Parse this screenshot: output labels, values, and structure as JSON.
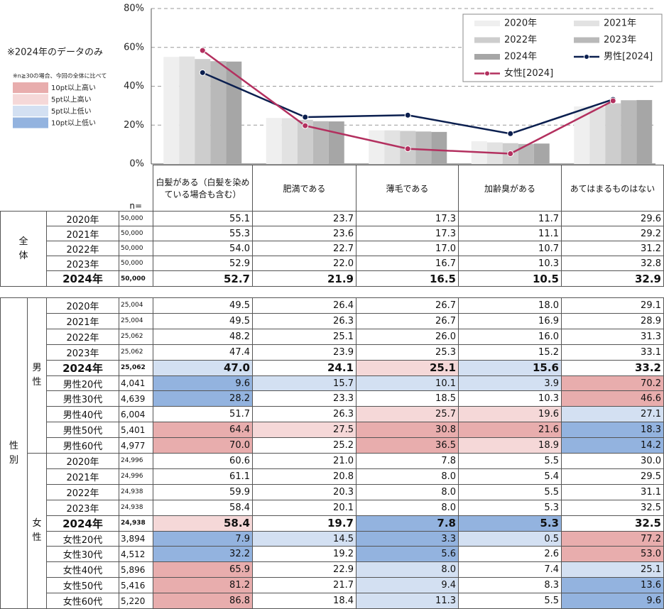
{
  "notes": {
    "data_only": "※2024年のデータのみ",
    "shade_caption": "※n≧30の場合、今回の全体に比べて"
  },
  "shade_legend": [
    {
      "label": "10pt以上高い",
      "color": "#e8adad"
    },
    {
      "label": "5pt以上高い",
      "color": "#f5d8d8"
    },
    {
      "label": "5pt以上低い",
      "color": "#d3e0f2"
    },
    {
      "label": "10pt以上低い",
      "color": "#93b3df"
    }
  ],
  "chart_data": {
    "type": "bar",
    "categories": [
      "白髪がある（白髪を染めている場合も含む）",
      "肥満である",
      "薄毛である",
      "加齢臭がある",
      "あてはまるものはない"
    ],
    "ylim": [
      0,
      80
    ],
    "yticks": [
      {
        "value": 0,
        "label": "0%"
      },
      {
        "value": 20,
        "label": "20%"
      },
      {
        "value": 40,
        "label": "40%"
      },
      {
        "value": 60,
        "label": "60%"
      },
      {
        "value": 80,
        "label": "80%"
      }
    ],
    "grid": true,
    "series": [
      {
        "name": "2020年",
        "color": "#efefef",
        "values": [
          55.1,
          23.7,
          17.3,
          11.7,
          29.6
        ]
      },
      {
        "name": "2021年",
        "color": "#e2e2e2",
        "values": [
          55.3,
          23.6,
          17.3,
          11.1,
          29.2
        ]
      },
      {
        "name": "2022年",
        "color": "#cdcdcd",
        "values": [
          54.0,
          22.7,
          17.0,
          10.7,
          31.2
        ]
      },
      {
        "name": "2023年",
        "color": "#b9b9b9",
        "values": [
          52.9,
          22.0,
          16.7,
          10.3,
          32.8
        ]
      },
      {
        "name": "2024年",
        "color": "#a6a6a6",
        "values": [
          52.7,
          21.9,
          16.5,
          10.5,
          32.9
        ]
      },
      {
        "name": "男性[2024]",
        "type": "line",
        "color": "#0b1f4f",
        "values": [
          47.0,
          24.1,
          25.1,
          15.6,
          33.2
        ]
      },
      {
        "name": "女性[2024]",
        "type": "line",
        "color": "#b3305f",
        "values": [
          58.4,
          19.7,
          7.8,
          5.3,
          32.5
        ]
      }
    ]
  },
  "table": {
    "n_label": "n=",
    "sections": [
      {
        "label": "全体",
        "rows": [
          {
            "label": "2020年",
            "n": "50,000",
            "values": [
              "55.1",
              "23.7",
              "17.3",
              "11.7",
              "29.6"
            ]
          },
          {
            "label": "2021年",
            "n": "50,000",
            "values": [
              "55.3",
              "23.6",
              "17.3",
              "11.1",
              "29.2"
            ]
          },
          {
            "label": "2022年",
            "n": "50,000",
            "values": [
              "54.0",
              "22.7",
              "17.0",
              "10.7",
              "31.2"
            ]
          },
          {
            "label": "2023年",
            "n": "50,000",
            "values": [
              "52.9",
              "22.0",
              "16.7",
              "10.3",
              "32.8"
            ]
          },
          {
            "label": "2024年",
            "n": "50,000",
            "values": [
              "52.7",
              "21.9",
              "16.5",
              "10.5",
              "32.9"
            ],
            "bold": true
          }
        ]
      },
      {
        "label": "性別",
        "subgroups": [
          {
            "label": "男性",
            "rows": [
              {
                "label": "2020年",
                "n": "25,004",
                "values": [
                  "49.5",
                  "26.4",
                  "26.7",
                  "18.0",
                  "29.1"
                ]
              },
              {
                "label": "2021年",
                "n": "25,004",
                "values": [
                  "49.5",
                  "26.3",
                  "26.7",
                  "16.9",
                  "28.9"
                ]
              },
              {
                "label": "2022年",
                "n": "25,062",
                "values": [
                  "48.2",
                  "25.1",
                  "26.0",
                  "16.0",
                  "31.3"
                ]
              },
              {
                "label": "2023年",
                "n": "25,062",
                "values": [
                  "47.4",
                  "23.9",
                  "25.3",
                  "15.2",
                  "33.1"
                ]
              },
              {
                "label": "2024年",
                "n": "25,062",
                "values": [
                  "47.0",
                  "24.1",
                  "25.1",
                  "15.6",
                  "33.2"
                ],
                "bold": true,
                "shades": [
                  2,
                  null,
                  1,
                  2,
                  null
                ]
              },
              {
                "label": "男性20代",
                "n": "4,041",
                "values": [
                  "9.6",
                  "15.7",
                  "10.1",
                  "3.9",
                  "70.2"
                ],
                "shades": [
                  3,
                  2,
                  2,
                  2,
                  0
                ]
              },
              {
                "label": "男性30代",
                "n": "4,639",
                "values": [
                  "28.2",
                  "23.3",
                  "18.5",
                  "10.3",
                  "46.6"
                ],
                "shades": [
                  3,
                  null,
                  null,
                  null,
                  0
                ]
              },
              {
                "label": "男性40代",
                "n": "6,004",
                "values": [
                  "51.7",
                  "26.3",
                  "25.7",
                  "19.6",
                  "27.1"
                ],
                "shades": [
                  null,
                  null,
                  1,
                  1,
                  2
                ]
              },
              {
                "label": "男性50代",
                "n": "5,401",
                "values": [
                  "64.4",
                  "27.5",
                  "30.8",
                  "21.6",
                  "18.3"
                ],
                "shades": [
                  0,
                  1,
                  0,
                  0,
                  3
                ]
              },
              {
                "label": "男性60代",
                "n": "4,977",
                "values": [
                  "70.0",
                  "25.2",
                  "36.5",
                  "18.9",
                  "14.2"
                ],
                "shades": [
                  0,
                  null,
                  0,
                  1,
                  3
                ]
              }
            ]
          },
          {
            "label": "女性",
            "rows": [
              {
                "label": "2020年",
                "n": "24,996",
                "values": [
                  "60.6",
                  "21.0",
                  "7.8",
                  "5.5",
                  "30.0"
                ]
              },
              {
                "label": "2021年",
                "n": "24,996",
                "values": [
                  "61.1",
                  "20.8",
                  "8.0",
                  "5.4",
                  "29.5"
                ]
              },
              {
                "label": "2022年",
                "n": "24,938",
                "values": [
                  "59.9",
                  "20.3",
                  "8.0",
                  "5.5",
                  "31.1"
                ]
              },
              {
                "label": "2023年",
                "n": "24,938",
                "values": [
                  "58.4",
                  "20.1",
                  "8.0",
                  "5.3",
                  "32.5"
                ]
              },
              {
                "label": "2024年",
                "n": "24,938",
                "values": [
                  "58.4",
                  "19.7",
                  "7.8",
                  "5.3",
                  "32.5"
                ],
                "bold": true,
                "shades": [
                  1,
                  null,
                  3,
                  3,
                  null
                ]
              },
              {
                "label": "女性20代",
                "n": "3,894",
                "values": [
                  "7.9",
                  "14.5",
                  "3.3",
                  "0.5",
                  "77.2"
                ],
                "shades": [
                  3,
                  2,
                  3,
                  2,
                  0
                ]
              },
              {
                "label": "女性30代",
                "n": "4,512",
                "values": [
                  "32.2",
                  "19.2",
                  "5.6",
                  "2.6",
                  "53.0"
                ],
                "shades": [
                  3,
                  null,
                  3,
                  null,
                  0
                ]
              },
              {
                "label": "女性40代",
                "n": "5,896",
                "values": [
                  "65.9",
                  "22.9",
                  "8.0",
                  "7.4",
                  "25.1"
                ],
                "shades": [
                  0,
                  null,
                  2,
                  null,
                  2
                ]
              },
              {
                "label": "女性50代",
                "n": "5,416",
                "values": [
                  "81.2",
                  "21.7",
                  "9.4",
                  "8.3",
                  "13.6"
                ],
                "shades": [
                  0,
                  null,
                  2,
                  null,
                  3
                ]
              },
              {
                "label": "女性60代",
                "n": "5,220",
                "values": [
                  "86.8",
                  "18.4",
                  "11.3",
                  "5.5",
                  "9.6"
                ],
                "shades": [
                  0,
                  null,
                  2,
                  null,
                  3
                ]
              }
            ]
          }
        ]
      }
    ]
  }
}
